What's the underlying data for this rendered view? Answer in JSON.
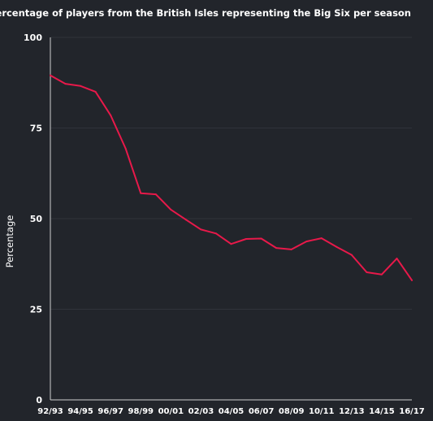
{
  "chart_data": {
    "type": "line",
    "title": "Percentage of players from the British Isles representing the Big Six per season",
    "xlabel": "",
    "ylabel": "Percentage",
    "ylim": [
      0,
      100
    ],
    "yticks": [
      0,
      25,
      50,
      75,
      100
    ],
    "grid": true,
    "x": [
      "92/93",
      "93/94",
      "94/95",
      "95/96",
      "96/97",
      "97/98",
      "98/99",
      "99/00",
      "00/01",
      "01/02",
      "02/03",
      "03/04",
      "04/05",
      "05/06",
      "06/07",
      "07/08",
      "08/09",
      "09/10",
      "10/11",
      "11/12",
      "12/13",
      "13/14",
      "14/15",
      "15/16",
      "16/17"
    ],
    "xtick_labels": [
      "92/93",
      "94/95",
      "96/97",
      "98/99",
      "00/01",
      "02/03",
      "04/05",
      "06/07",
      "08/09",
      "10/11",
      "12/13",
      "14/15",
      "16/17"
    ],
    "series": [
      {
        "color": "#e8194a",
        "values": [
          89.5,
          87.2,
          86.6,
          85.0,
          78.5,
          69.3,
          57.0,
          56.7,
          52.5,
          49.7,
          47.0,
          45.9,
          43.0,
          44.4,
          44.5,
          41.9,
          41.5,
          43.7,
          44.6,
          42.2,
          40.0,
          35.2,
          34.6,
          39.0,
          33.0
        ]
      }
    ]
  }
}
